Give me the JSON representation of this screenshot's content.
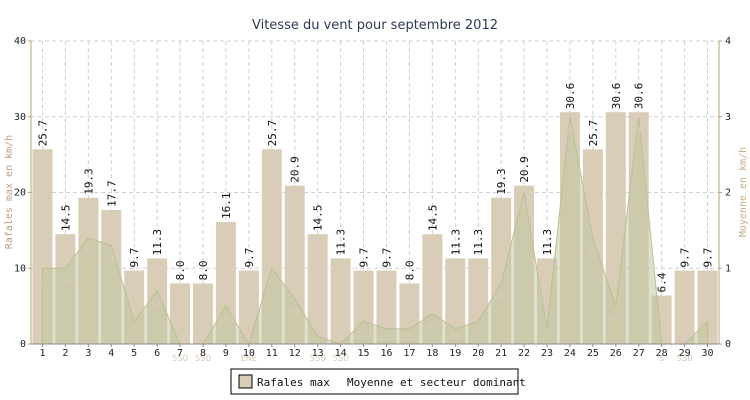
{
  "chart_data": {
    "type": "bar",
    "title": "Vitesse du vent pour septembre 2012",
    "ylabel": "Rafales max en km/h",
    "y2label": "Moyenne en km/h",
    "ylim": [
      0,
      40
    ],
    "y2lim": [
      0,
      4
    ],
    "yticks": [
      0,
      10,
      20,
      30,
      40
    ],
    "y2ticks": [
      0,
      1,
      2,
      3,
      4
    ],
    "grid": true,
    "legend_position": "bottom",
    "categories": [
      "1",
      "2",
      "3",
      "4",
      "5",
      "6",
      "7",
      "8",
      "9",
      "10",
      "11",
      "12",
      "13",
      "14",
      "15",
      "16",
      "17",
      "18",
      "19",
      "20",
      "21",
      "22",
      "23",
      "24",
      "25",
      "26",
      "27",
      "28",
      "29",
      "30"
    ],
    "series": [
      {
        "name": "Rafales max",
        "type": "bar",
        "color": "#d9cdb7",
        "values": [
          25.7,
          14.5,
          19.3,
          17.7,
          9.7,
          11.3,
          8.0,
          8.0,
          16.1,
          9.7,
          25.7,
          20.9,
          14.5,
          11.3,
          9.7,
          9.7,
          8.0,
          14.5,
          11.3,
          11.3,
          19.3,
          20.9,
          11.3,
          30.6,
          25.7,
          30.6,
          30.6,
          6.4,
          9.7,
          9.7
        ],
        "labels": [
          "25.7",
          "14.5",
          "19.3",
          "17.7",
          "9.7",
          "11.3",
          "8.0",
          "8.0",
          "16.1",
          "9.7",
          "25.7",
          "20.9",
          "14.5",
          "11.3",
          "9.7",
          "9.7",
          "8.0",
          "14.5",
          "11.3",
          "11.3",
          "19.3",
          "20.9",
          "11.3",
          "30.6",
          "25.7",
          "30.6",
          "30.6",
          "6.4",
          "9.7",
          "9.7"
        ]
      },
      {
        "name": "Moyenne et secteur dominant",
        "type": "area",
        "axis": "right",
        "color": "#c3c9a4",
        "values": [
          1.0,
          1.0,
          1.4,
          1.3,
          0.3,
          0.7,
          0.0,
          0.0,
          0.5,
          0.0,
          1.0,
          0.6,
          0.1,
          0.0,
          0.3,
          0.2,
          0.2,
          0.4,
          0.2,
          0.3,
          0.8,
          2.0,
          0.2,
          3.0,
          1.4,
          0.5,
          3.0,
          0.0,
          0.0,
          0.3
        ],
        "sectors": [
          "S",
          "SSE",
          "NE",
          "NE",
          "S",
          "NE",
          "SSO",
          "SSO",
          "SSO",
          "ENE",
          "E",
          "NE",
          "SSO",
          "SSO",
          "SSO",
          "SSO",
          "SSO",
          "NE",
          "NE",
          "S",
          "SSO",
          "NE",
          "",
          "NE",
          "NE",
          "NE",
          "NE",
          "S",
          "SSO",
          ""
        ]
      }
    ]
  }
}
